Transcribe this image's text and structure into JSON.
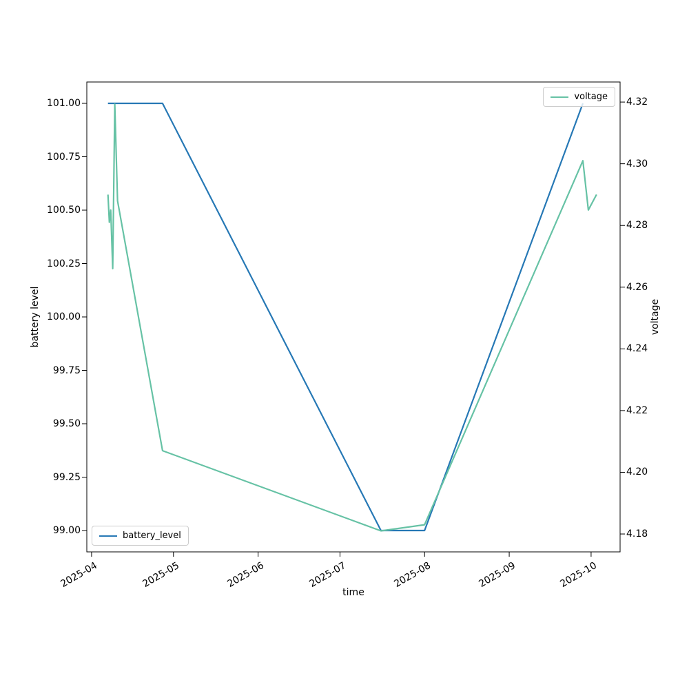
{
  "figure": {
    "background": "#ffffff",
    "spine_color": "#000000"
  },
  "chart_data": {
    "type": "line",
    "title": "",
    "xlabel": "time",
    "x_ticks": [
      {
        "label": "2025-04",
        "date": "2025-04-01T00:00:00Z"
      },
      {
        "label": "2025-05",
        "date": "2025-05-01T00:00:00Z"
      },
      {
        "label": "2025-06",
        "date": "2025-06-01T00:00:00Z"
      },
      {
        "label": "2025-07",
        "date": "2025-07-01T00:00:00Z"
      },
      {
        "label": "2025-08",
        "date": "2025-08-01T00:00:00Z"
      },
      {
        "label": "2025-09",
        "date": "2025-09-01T00:00:00Z"
      },
      {
        "label": "2025-10",
        "date": "2025-10-01T00:00:00Z"
      }
    ],
    "xlim": [
      "2025-03-30T06:00:00Z",
      "2025-10-11T15:00:00Z"
    ],
    "axes": {
      "left": {
        "label": "battery level",
        "tick_labels": [
          "101.00",
          "100.75",
          "100.50",
          "100.25",
          "100.00",
          "99.75",
          "99.50",
          "99.25",
          "99.00"
        ],
        "lim": [
          98.9,
          101.1
        ]
      },
      "right": {
        "label": "voltage",
        "tick_labels": [
          "4.32",
          "4.30",
          "4.28",
          "4.26",
          "4.24",
          "4.22",
          "4.20",
          "4.18"
        ],
        "lim": [
          4.1742,
          4.3265
        ]
      }
    },
    "series": [
      {
        "name": "battery_level",
        "yaxis": "left",
        "color": "#2678b5",
        "points": [
          [
            "2025-04-07T00:00:00Z",
            101.0
          ],
          [
            "2025-04-27T00:00:00Z",
            101.0
          ],
          [
            "2025-07-16T00:00:00Z",
            99.0
          ],
          [
            "2025-08-01T00:00:00Z",
            99.0
          ],
          [
            "2025-09-28T00:00:00Z",
            101.0
          ]
        ]
      },
      {
        "name": "voltage",
        "yaxis": "right",
        "color": "#66c2a5",
        "points": [
          [
            "2025-04-07T00:00:00Z",
            4.29
          ],
          [
            "2025-04-07T12:00:00Z",
            4.281
          ],
          [
            "2025-04-08T00:00:00Z",
            4.285
          ],
          [
            "2025-04-08T18:00:00Z",
            4.266
          ],
          [
            "2025-04-09T12:00:00Z",
            4.3193
          ],
          [
            "2025-04-10T12:00:00Z",
            4.288
          ],
          [
            "2025-04-27T00:00:00Z",
            4.207
          ],
          [
            "2025-07-16T00:00:00Z",
            4.181
          ],
          [
            "2025-08-01T00:00:00Z",
            4.183
          ],
          [
            "2025-09-28T00:00:00Z",
            4.301
          ],
          [
            "2025-09-30T00:00:00Z",
            4.285
          ],
          [
            "2025-10-03T00:00:00Z",
            4.29
          ]
        ]
      }
    ],
    "legends": [
      {
        "label": "battery_level",
        "color": "#2678b5",
        "position": "lower left"
      },
      {
        "label": "voltage",
        "color": "#66c2a5",
        "position": "upper right"
      }
    ]
  }
}
